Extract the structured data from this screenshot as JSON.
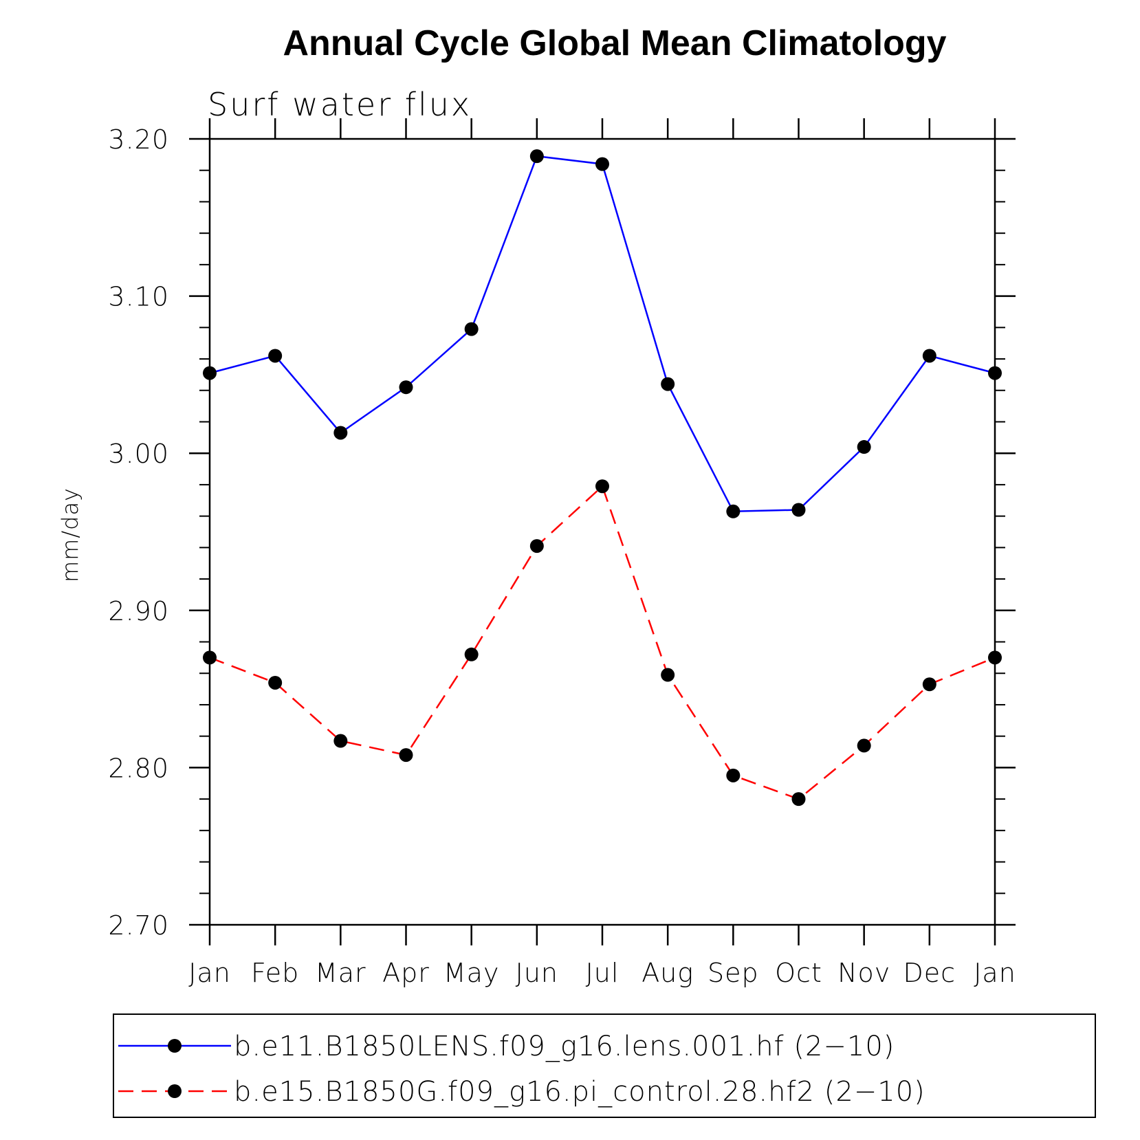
{
  "chart_data": {
    "type": "line",
    "title": "Annual Cycle Global Mean Climatology",
    "subtitle": "Surf water flux",
    "xlabel": "",
    "ylabel": "mm/day",
    "categories": [
      "Jan",
      "Feb",
      "Mar",
      "Apr",
      "May",
      "Jun",
      "Jul",
      "Aug",
      "Sep",
      "Oct",
      "Nov",
      "Dec",
      "Jan"
    ],
    "ylim": [
      2.7,
      3.2
    ],
    "yticks": [
      "2.70",
      "2.80",
      "2.90",
      "3.00",
      "3.10",
      "3.20"
    ],
    "ytick_values": [
      2.7,
      2.8,
      2.9,
      3.0,
      3.1,
      3.2
    ],
    "minor_ytick_step": 0.02,
    "legend_position": "bottom",
    "series": [
      {
        "name": "b.e11.B1850LENS.f09_g16.lens.001.hf (2−10)",
        "color": "#0000ff",
        "style": "solid",
        "marker": "circle",
        "values": [
          3.051,
          3.062,
          3.013,
          3.042,
          3.079,
          3.189,
          3.184,
          3.044,
          2.963,
          2.964,
          3.004,
          3.062,
          3.051
        ]
      },
      {
        "name": "b.e15.B1850G.f09_g16.pi_control.28.hf2 (2−10)",
        "color": "#ff0000",
        "style": "dashed",
        "marker": "circle",
        "values": [
          2.87,
          2.854,
          2.817,
          2.808,
          2.872,
          2.941,
          2.979,
          2.859,
          2.795,
          2.78,
          2.814,
          2.853,
          2.87
        ]
      }
    ]
  }
}
